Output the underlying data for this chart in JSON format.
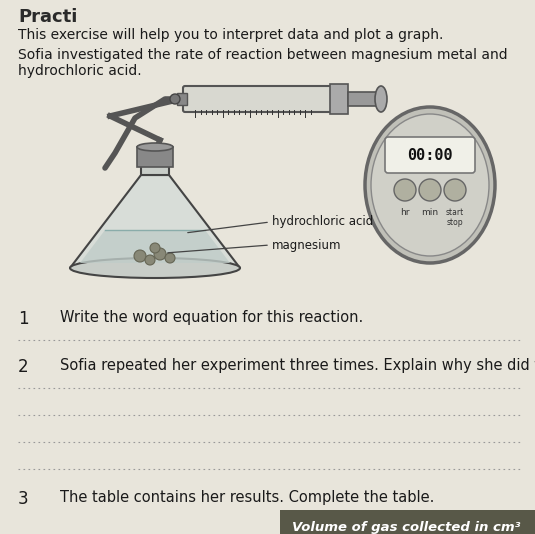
{
  "background_color": "#c5c3b5",
  "page_background": "#e8e5db",
  "title_text": "This exercise will help you to interpret data and plot a graph.",
  "subtitle_text": "Sofia investigated the rate of reaction between magnesium metal and\nhydrochloric acid.",
  "q1_num": "1",
  "q1_text": "Write the word equation for this reaction.",
  "q2_num": "2",
  "q2_text": "Sofia repeated her experiment three times. Explain why she did this.",
  "q3_num": "3",
  "q3_text": "The table contains her results. Complete the table.",
  "q3_subtext": "Volume of gas collected in cm³",
  "label_hydrochloric": "hydrochloric acid",
  "label_magnesium": "magnesium",
  "stopwatch_text": "00:00",
  "font_size_body": 10,
  "font_size_question": 10.5,
  "font_size_number": 12
}
